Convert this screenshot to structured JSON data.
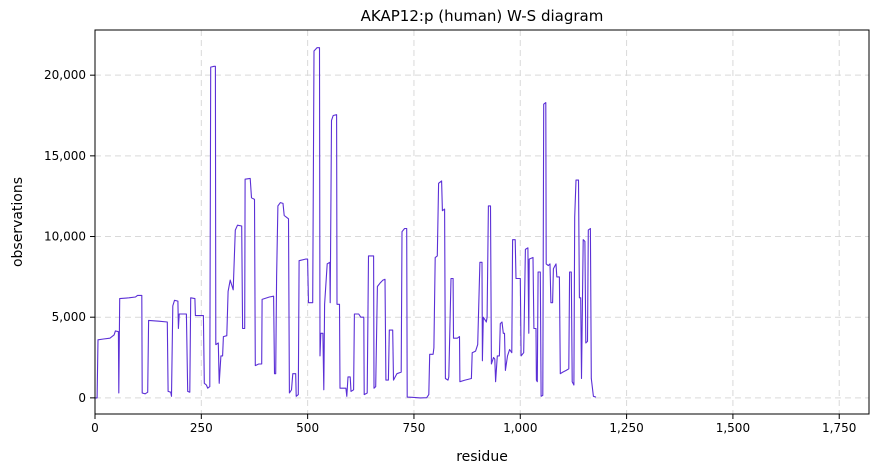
{
  "chart_data": {
    "type": "line",
    "title": "AKAP12:p (human) W-S diagram",
    "xlabel": "residue",
    "ylabel": "observations",
    "xlim": [
      0,
      1820
    ],
    "ylim": [
      -1000,
      22800
    ],
    "x_ticks": [
      0,
      250,
      500,
      750,
      1000,
      1250,
      1500,
      1750
    ],
    "x_tick_labels": [
      "0",
      "250",
      "500",
      "750",
      "1,000",
      "1,250",
      "1,500",
      "1,750"
    ],
    "y_ticks": [
      0,
      5000,
      10000,
      15000,
      20000
    ],
    "y_tick_labels": [
      "0",
      "5,000",
      "10,000",
      "15,000",
      "20,000"
    ],
    "grid": true,
    "line_color": "#5b2fd6",
    "series": [
      {
        "points": [
          [
            0,
            0
          ],
          [
            5,
            0
          ],
          [
            7,
            3600
          ],
          [
            20,
            3650
          ],
          [
            35,
            3700
          ],
          [
            45,
            3900
          ],
          [
            48,
            4150
          ],
          [
            55,
            4100
          ],
          [
            56,
            300
          ],
          [
            58,
            6150
          ],
          [
            80,
            6200
          ],
          [
            95,
            6250
          ],
          [
            100,
            6350
          ],
          [
            110,
            6350
          ],
          [
            111,
            300
          ],
          [
            118,
            250
          ],
          [
            124,
            350
          ],
          [
            126,
            4800
          ],
          [
            150,
            4750
          ],
          [
            170,
            4700
          ],
          [
            172,
            400
          ],
          [
            178,
            350
          ],
          [
            180,
            100
          ],
          [
            183,
            5700
          ],
          [
            187,
            6050
          ],
          [
            195,
            6000
          ],
          [
            196,
            4300
          ],
          [
            198,
            5200
          ],
          [
            215,
            5200
          ],
          [
            218,
            400
          ],
          [
            223,
            350
          ],
          [
            225,
            6200
          ],
          [
            235,
            6150
          ],
          [
            236,
            5100
          ],
          [
            255,
            5100
          ],
          [
            257,
            900
          ],
          [
            262,
            800
          ],
          [
            265,
            600
          ],
          [
            270,
            700
          ],
          [
            272,
            20500
          ],
          [
            280,
            20550
          ],
          [
            283,
            20550
          ],
          [
            284,
            3300
          ],
          [
            290,
            3400
          ],
          [
            292,
            900
          ],
          [
            296,
            2600
          ],
          [
            300,
            2600
          ],
          [
            302,
            3800
          ],
          [
            310,
            3850
          ],
          [
            313,
            6600
          ],
          [
            318,
            7300
          ],
          [
            325,
            6700
          ],
          [
            330,
            10400
          ],
          [
            335,
            10700
          ],
          [
            345,
            10650
          ],
          [
            347,
            4300
          ],
          [
            352,
            4300
          ],
          [
            353,
            13550
          ],
          [
            365,
            13600
          ],
          [
            368,
            12400
          ],
          [
            375,
            12300
          ],
          [
            377,
            2000
          ],
          [
            385,
            2100
          ],
          [
            392,
            2100
          ],
          [
            393,
            6100
          ],
          [
            410,
            6250
          ],
          [
            420,
            6300
          ],
          [
            422,
            1500
          ],
          [
            425,
            1500
          ],
          [
            427,
            7500
          ],
          [
            430,
            11900
          ],
          [
            436,
            12100
          ],
          [
            442,
            12050
          ],
          [
            445,
            11300
          ],
          [
            450,
            11200
          ],
          [
            455,
            11100
          ],
          [
            457,
            300
          ],
          [
            462,
            500
          ],
          [
            465,
            1500
          ],
          [
            472,
            1500
          ],
          [
            473,
            100
          ],
          [
            478,
            200
          ],
          [
            480,
            8500
          ],
          [
            495,
            8600
          ],
          [
            500,
            8600
          ],
          [
            502,
            5900
          ],
          [
            512,
            5900
          ],
          [
            515,
            21500
          ],
          [
            522,
            21700
          ],
          [
            528,
            21700
          ],
          [
            529,
            2600
          ],
          [
            531,
            4000
          ],
          [
            536,
            4000
          ],
          [
            538,
            500
          ],
          [
            540,
            5800
          ],
          [
            546,
            8300
          ],
          [
            552,
            8400
          ],
          [
            553,
            5900
          ],
          [
            556,
            17200
          ],
          [
            560,
            17500
          ],
          [
            568,
            17550
          ],
          [
            569,
            5800
          ],
          [
            575,
            5800
          ],
          [
            576,
            600
          ],
          [
            590,
            600
          ],
          [
            592,
            100
          ],
          [
            595,
            1300
          ],
          [
            600,
            1300
          ],
          [
            602,
            400
          ],
          [
            608,
            500
          ],
          [
            610,
            5200
          ],
          [
            620,
            5200
          ],
          [
            625,
            5000
          ],
          [
            632,
            5000
          ],
          [
            633,
            200
          ],
          [
            640,
            300
          ],
          [
            643,
            8800
          ],
          [
            655,
            8800
          ],
          [
            656,
            600
          ],
          [
            660,
            700
          ],
          [
            664,
            6900
          ],
          [
            670,
            7100
          ],
          [
            677,
            7300
          ],
          [
            682,
            7350
          ],
          [
            684,
            1100
          ],
          [
            690,
            1100
          ],
          [
            692,
            4200
          ],
          [
            700,
            4200
          ],
          [
            702,
            1100
          ],
          [
            706,
            1300
          ],
          [
            710,
            1500
          ],
          [
            720,
            1600
          ],
          [
            722,
            10300
          ],
          [
            728,
            10500
          ],
          [
            733,
            10500
          ],
          [
            734,
            50
          ],
          [
            750,
            30
          ],
          [
            765,
            0
          ],
          [
            780,
            10
          ],
          [
            785,
            200
          ],
          [
            787,
            2700
          ],
          [
            795,
            2700
          ],
          [
            797,
            3100
          ],
          [
            800,
            8700
          ],
          [
            805,
            8800
          ],
          [
            808,
            13300
          ],
          [
            815,
            13450
          ],
          [
            817,
            11600
          ],
          [
            822,
            11700
          ],
          [
            824,
            1200
          ],
          [
            830,
            1100
          ],
          [
            832,
            1300
          ],
          [
            837,
            7400
          ],
          [
            842,
            7400
          ],
          [
            843,
            3700
          ],
          [
            852,
            3700
          ],
          [
            857,
            3800
          ],
          [
            858,
            1000
          ],
          [
            870,
            1100
          ],
          [
            885,
            1200
          ],
          [
            887,
            2800
          ],
          [
            895,
            2900
          ],
          [
            900,
            3300
          ],
          [
            905,
            8400
          ],
          [
            910,
            8400
          ],
          [
            911,
            2300
          ],
          [
            913,
            5000
          ],
          [
            918,
            4800
          ],
          [
            920,
            4700
          ],
          [
            922,
            5000
          ],
          [
            925,
            11900
          ],
          [
            930,
            11900
          ],
          [
            932,
            2100
          ],
          [
            937,
            2500
          ],
          [
            940,
            2400
          ],
          [
            942,
            1000
          ],
          [
            946,
            2600
          ],
          [
            951,
            2600
          ],
          [
            953,
            4600
          ],
          [
            957,
            4700
          ],
          [
            960,
            4000
          ],
          [
            963,
            4000
          ],
          [
            965,
            1700
          ],
          [
            970,
            2600
          ],
          [
            975,
            3000
          ],
          [
            980,
            2800
          ],
          [
            982,
            9800
          ],
          [
            988,
            9800
          ],
          [
            990,
            7400
          ],
          [
            1000,
            7400
          ],
          [
            1002,
            2600
          ],
          [
            1008,
            2800
          ],
          [
            1012,
            9200
          ],
          [
            1018,
            9300
          ],
          [
            1020,
            4000
          ],
          [
            1021,
            8600
          ],
          [
            1030,
            8700
          ],
          [
            1032,
            4300
          ],
          [
            1037,
            4300
          ],
          [
            1038,
            1100
          ],
          [
            1040,
            1000
          ],
          [
            1042,
            7800
          ],
          [
            1047,
            7800
          ],
          [
            1049,
            100
          ],
          [
            1053,
            150
          ],
          [
            1055,
            18200
          ],
          [
            1060,
            18300
          ],
          [
            1061,
            8300
          ],
          [
            1066,
            8200
          ],
          [
            1070,
            8300
          ],
          [
            1072,
            5900
          ],
          [
            1076,
            5900
          ],
          [
            1078,
            8000
          ],
          [
            1084,
            8300
          ],
          [
            1086,
            7500
          ],
          [
            1092,
            7500
          ],
          [
            1094,
            1500
          ],
          [
            1100,
            1600
          ],
          [
            1108,
            1700
          ],
          [
            1114,
            1800
          ],
          [
            1116,
            7800
          ],
          [
            1120,
            7800
          ],
          [
            1122,
            1000
          ],
          [
            1126,
            800
          ],
          [
            1128,
            11200
          ],
          [
            1131,
            13500
          ],
          [
            1137,
            13500
          ],
          [
            1139,
            6200
          ],
          [
            1142,
            6200
          ],
          [
            1144,
            1200
          ],
          [
            1148,
            9800
          ],
          [
            1152,
            9700
          ],
          [
            1154,
            3400
          ],
          [
            1158,
            3500
          ],
          [
            1160,
            10400
          ],
          [
            1165,
            10500
          ],
          [
            1167,
            1200
          ],
          [
            1172,
            100
          ],
          [
            1178,
            50
          ]
        ]
      }
    ]
  }
}
